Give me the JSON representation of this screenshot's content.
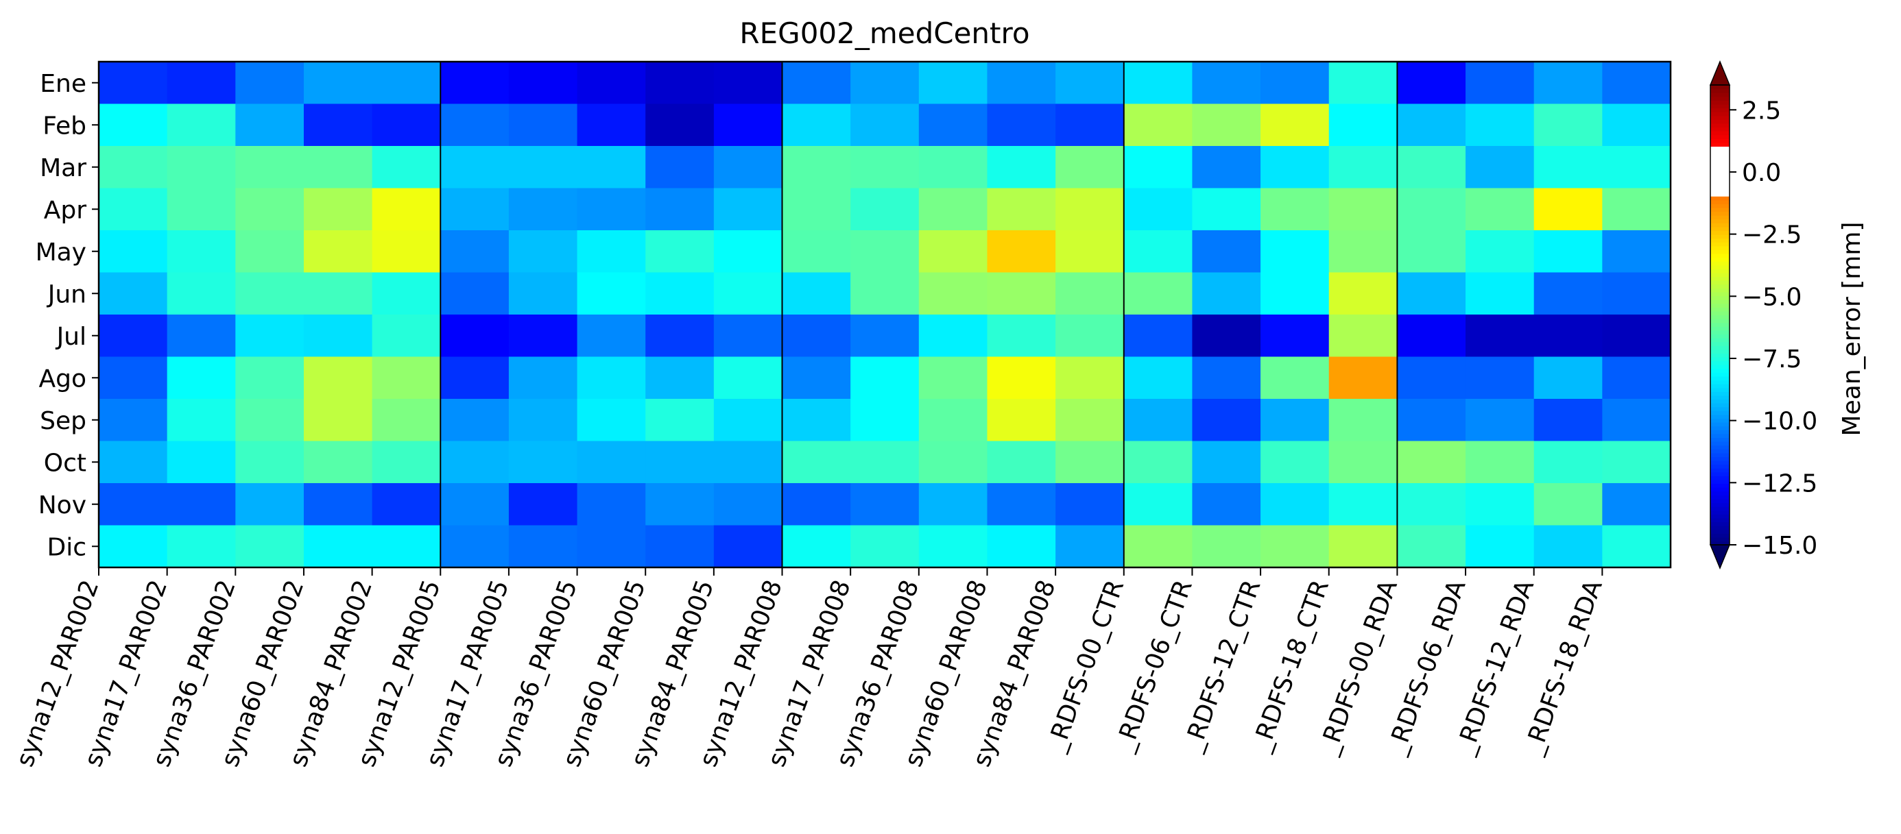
{
  "chart_data": {
    "type": "heatmap",
    "title": "REG002_medCentro",
    "months": [
      "Ene",
      "Feb",
      "Mar",
      "Apr",
      "May",
      "Jun",
      "Jul",
      "Ago",
      "Sep",
      "Oct",
      "Nov",
      "Dic"
    ],
    "columns": [
      "syna12_PAR002",
      "syna17_PAR002",
      "syna36_PAR002",
      "syna60_PAR002",
      "syna84_PAR002",
      "syna12_PAR005",
      "syna17_PAR005",
      "syna36_PAR005",
      "syna60_PAR005",
      "syna84_PAR005",
      "syna12_PAR008",
      "syna17_PAR008",
      "syna36_PAR008",
      "syna60_PAR008",
      "syna84_PAR008",
      "_RDFS-00_CTR",
      "_RDFS-06_CTR",
      "_RDFS-12_CTR",
      "_RDFS-18_CTR",
      "_RDFS-00_RDA",
      "_RDFS-06_RDA",
      "_RDFS-12_RDA",
      "_RDFS-18_RDA"
    ],
    "group_boundaries_after_column": [
      5,
      10,
      15,
      19
    ],
    "values": [
      [
        -11.8,
        -12.0,
        -10.5,
        -9.8,
        -9.8,
        -12.6,
        -12.8,
        -13.1,
        -13.6,
        -13.5,
        -10.6,
        -9.8,
        -9.0,
        -10.0,
        -9.5,
        -8.5,
        -10.1,
        -10.3,
        -7.5,
        -12.6,
        -11.0,
        -9.8,
        -10.6
      ],
      [
        -8.0,
        -7.4,
        -9.6,
        -12.0,
        -12.2,
        -10.7,
        -10.9,
        -12.3,
        -13.9,
        -12.6,
        -8.7,
        -9.3,
        -10.6,
        -11.3,
        -11.6,
        -4.9,
        -5.3,
        -4.0,
        -8.1,
        -9.2,
        -8.6,
        -7.1,
        -8.6
      ],
      [
        -6.9,
        -6.7,
        -6.4,
        -6.4,
        -7.5,
        -9.0,
        -9.0,
        -9.0,
        -10.9,
        -10.1,
        -6.5,
        -6.6,
        -6.7,
        -7.7,
        -5.9,
        -8.0,
        -10.3,
        -8.5,
        -7.4,
        -7.0,
        -9.4,
        -7.7,
        -7.7
      ],
      [
        -7.5,
        -6.7,
        -6.1,
        -5.0,
        -3.7,
        -9.5,
        -9.9,
        -10.0,
        -10.2,
        -9.2,
        -6.5,
        -7.2,
        -5.9,
        -4.8,
        -4.4,
        -8.4,
        -7.8,
        -6.0,
        -5.6,
        -6.6,
        -6.2,
        -3.3,
        -6.1
      ],
      [
        -8.3,
        -7.6,
        -6.3,
        -4.3,
        -3.8,
        -10.3,
        -9.2,
        -8.3,
        -7.4,
        -8.0,
        -6.6,
        -6.5,
        -4.7,
        -2.6,
        -4.3,
        -7.7,
        -10.5,
        -8.1,
        -5.7,
        -6.6,
        -7.6,
        -8.2,
        -10.2
      ],
      [
        -9.2,
        -7.5,
        -6.9,
        -6.9,
        -7.6,
        -10.8,
        -9.4,
        -8.1,
        -8.3,
        -7.8,
        -8.6,
        -6.5,
        -5.4,
        -5.3,
        -6.0,
        -6.1,
        -9.3,
        -8.1,
        -4.2,
        -9.3,
        -8.3,
        -10.8,
        -10.9
      ],
      [
        -11.9,
        -10.6,
        -8.5,
        -8.6,
        -7.4,
        -12.7,
        -12.5,
        -10.2,
        -11.6,
        -10.8,
        -11.0,
        -10.5,
        -8.3,
        -7.3,
        -6.6,
        -11.2,
        -14.1,
        -12.5,
        -4.9,
        -12.8,
        -13.8,
        -13.8,
        -13.9
      ],
      [
        -11.0,
        -8.0,
        -6.8,
        -4.6,
        -5.4,
        -11.8,
        -9.7,
        -8.5,
        -9.3,
        -7.7,
        -10.3,
        -8.0,
        -6.1,
        -3.6,
        -4.6,
        -8.6,
        -10.8,
        -6.2,
        -1.7,
        -11.0,
        -11.0,
        -9.3,
        -11.0
      ],
      [
        -10.4,
        -7.7,
        -6.6,
        -4.6,
        -5.8,
        -10.1,
        -9.5,
        -8.3,
        -7.5,
        -8.6,
        -8.9,
        -8.0,
        -6.4,
        -3.9,
        -5.1,
        -9.5,
        -11.6,
        -9.6,
        -6.1,
        -10.6,
        -10.2,
        -11.4,
        -10.5
      ],
      [
        -9.4,
        -8.4,
        -7.0,
        -6.5,
        -7.0,
        -9.4,
        -9.3,
        -9.4,
        -9.4,
        -9.4,
        -7.1,
        -7.1,
        -6.5,
        -6.9,
        -6.0,
        -6.8,
        -9.4,
        -7.1,
        -6.0,
        -5.6,
        -6.1,
        -7.3,
        -7.2
      ],
      [
        -11.1,
        -11.1,
        -9.5,
        -11.0,
        -11.7,
        -10.2,
        -12.0,
        -10.8,
        -10.1,
        -10.3,
        -11.0,
        -10.6,
        -9.4,
        -10.6,
        -11.1,
        -7.7,
        -10.5,
        -8.6,
        -7.7,
        -7.5,
        -7.8,
        -6.3,
        -10.2
      ],
      [
        -8.2,
        -7.6,
        -7.3,
        -8.2,
        -8.2,
        -10.4,
        -10.7,
        -10.8,
        -11.0,
        -11.7,
        -7.9,
        -7.4,
        -7.8,
        -8.2,
        -9.7,
        -5.5,
        -5.8,
        -5.6,
        -4.8,
        -6.9,
        -8.2,
        -8.8,
        -7.6
      ]
    ],
    "colorbar": {
      "label": "Mean_error [mm]",
      "min": -15.0,
      "max": 3.5,
      "ticks": [
        2.5,
        0.0,
        -2.5,
        -5.0,
        -7.5,
        -10.0,
        -12.5,
        -15.0
      ],
      "tick_labels": [
        "2.5",
        "0.0",
        "−2.5",
        "−5.0",
        "−7.5",
        "−10.0",
        "−12.5",
        "−15.0"
      ],
      "white_band": [
        -1.0,
        1.0
      ],
      "colormap": "jet",
      "extend": "both",
      "extend_colors": {
        "low": "#000064",
        "high": "#6e0000"
      }
    }
  }
}
